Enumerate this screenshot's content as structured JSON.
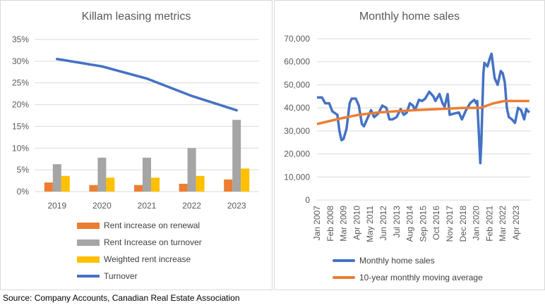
{
  "source": "Source: Company Accounts, Canadian Real Estate Association",
  "chart_data": [
    {
      "type": "bar",
      "title": "Killam leasing metrics",
      "categories": [
        "2019",
        "2020",
        "2021",
        "2022",
        "2023"
      ],
      "yticks": [
        "0%",
        "5%",
        "10%",
        "15%",
        "20%",
        "25%",
        "30%",
        "35%"
      ],
      "ylim": [
        0,
        35
      ],
      "grid": true,
      "legend": "bottom",
      "series": [
        {
          "name": "Rent increase on renewal",
          "type": "bar",
          "color": "#ED7D31",
          "values": [
            2.1,
            1.5,
            1.5,
            1.8,
            2.8
          ]
        },
        {
          "name": "Rent Increase on turnover",
          "type": "bar",
          "color": "#A5A5A5",
          "values": [
            6.3,
            7.8,
            7.8,
            10.0,
            16.5
          ]
        },
        {
          "name": "Weighted rent increase",
          "type": "bar",
          "color": "#FFC000",
          "values": [
            3.6,
            3.2,
            3.2,
            3.6,
            5.3
          ]
        },
        {
          "name": "Turnover",
          "type": "line",
          "color": "#4472C4",
          "values": [
            30.5,
            28.8,
            26.0,
            22.0,
            18.7
          ]
        }
      ]
    },
    {
      "type": "line",
      "title": "Monthly home sales",
      "ylim": [
        0,
        70000
      ],
      "grid": true,
      "legend": "bottom",
      "yticks": [
        "0",
        "10,000",
        "20,000",
        "30,000",
        "40,000",
        "50,000",
        "60,000",
        "70,000"
      ],
      "xticks": [
        "Jan 2007",
        "Feb 2008",
        "Mar 2009",
        "Apr 2010",
        "May 2011",
        "Jun 2012",
        "Jul 2013",
        "Aug 2014",
        "Sep 2015",
        "Oct 2016",
        "Nov 2017",
        "Dec 2018",
        "Jan 2020",
        "Feb 2021",
        "Mar 2022",
        "Apr 2023"
      ],
      "series": [
        {
          "name": "Monthly home sales",
          "color": "#4472C4",
          "points": [
            [
              "2007-01",
              44500
            ],
            [
              "2007-06",
              44500
            ],
            [
              "2007-09",
              42000
            ],
            [
              "2008-01",
              42000
            ],
            [
              "2008-04",
              38500
            ],
            [
              "2008-09",
              37000
            ],
            [
              "2008-11",
              30000
            ],
            [
              "2009-01",
              26000
            ],
            [
              "2009-03",
              26500
            ],
            [
              "2009-06",
              31000
            ],
            [
              "2009-09",
              42000
            ],
            [
              "2009-11",
              44000
            ],
            [
              "2010-03",
              44000
            ],
            [
              "2010-06",
              41000
            ],
            [
              "2010-09",
              33000
            ],
            [
              "2010-11",
              32000
            ],
            [
              "2011-02",
              35000
            ],
            [
              "2011-06",
              39000
            ],
            [
              "2011-09",
              36000
            ],
            [
              "2012-01",
              37500
            ],
            [
              "2012-05",
              41000
            ],
            [
              "2012-09",
              40000
            ],
            [
              "2012-12",
              35000
            ],
            [
              "2013-03",
              35000
            ],
            [
              "2013-07",
              36000
            ],
            [
              "2013-11",
              39500
            ],
            [
              "2014-02",
              37000
            ],
            [
              "2014-05",
              38000
            ],
            [
              "2014-08",
              42000
            ],
            [
              "2014-11",
              41000
            ],
            [
              "2015-01",
              39000
            ],
            [
              "2015-05",
              43500
            ],
            [
              "2015-08",
              43000
            ],
            [
              "2015-11",
              44000
            ],
            [
              "2016-03",
              47000
            ],
            [
              "2016-07",
              45000
            ],
            [
              "2016-09",
              43000
            ],
            [
              "2017-01",
              46000
            ],
            [
              "2017-04",
              42000
            ],
            [
              "2017-06",
              40500
            ],
            [
              "2017-09",
              46000
            ],
            [
              "2017-11",
              37000
            ],
            [
              "2018-03",
              37500
            ],
            [
              "2018-08",
              38000
            ],
            [
              "2018-11",
              35000
            ],
            [
              "2019-03",
              39000
            ],
            [
              "2019-07",
              42000
            ],
            [
              "2019-11",
              43500
            ],
            [
              "2020-01",
              42000
            ],
            [
              "2020-02",
              43000
            ],
            [
              "2020-05",
              16000
            ],
            [
              "2020-06",
              25000
            ],
            [
              "2020-08",
              55000
            ],
            [
              "2020-09",
              59500
            ],
            [
              "2020-12",
              58000
            ],
            [
              "2021-02",
              61000
            ],
            [
              "2021-04",
              63500
            ],
            [
              "2021-07",
              53000
            ],
            [
              "2021-10",
              50000
            ],
            [
              "2022-01",
              56000
            ],
            [
              "2022-03",
              55000
            ],
            [
              "2022-05",
              51000
            ],
            [
              "2022-07",
              40000
            ],
            [
              "2022-09",
              36000
            ],
            [
              "2022-12",
              35000
            ],
            [
              "2023-03",
              33500
            ],
            [
              "2023-06",
              40000
            ],
            [
              "2023-09",
              39000
            ],
            [
              "2023-12",
              35000
            ],
            [
              "2024-02",
              39500
            ],
            [
              "2024-05",
              38000
            ]
          ]
        },
        {
          "name": "10-year monthly moving average",
          "color": "#ED7D31",
          "points": [
            [
              "2007-01",
              33000
            ],
            [
              "2009-01",
              35500
            ],
            [
              "2010-06",
              37000
            ],
            [
              "2012-01",
              38000
            ],
            [
              "2013-06",
              38500
            ],
            [
              "2015-01",
              39000
            ],
            [
              "2017-01",
              39500
            ],
            [
              "2019-01",
              40000
            ],
            [
              "2020-05",
              40000
            ],
            [
              "2021-06",
              42000
            ],
            [
              "2022-05",
              43000
            ],
            [
              "2024-05",
              43000
            ]
          ]
        }
      ]
    }
  ]
}
